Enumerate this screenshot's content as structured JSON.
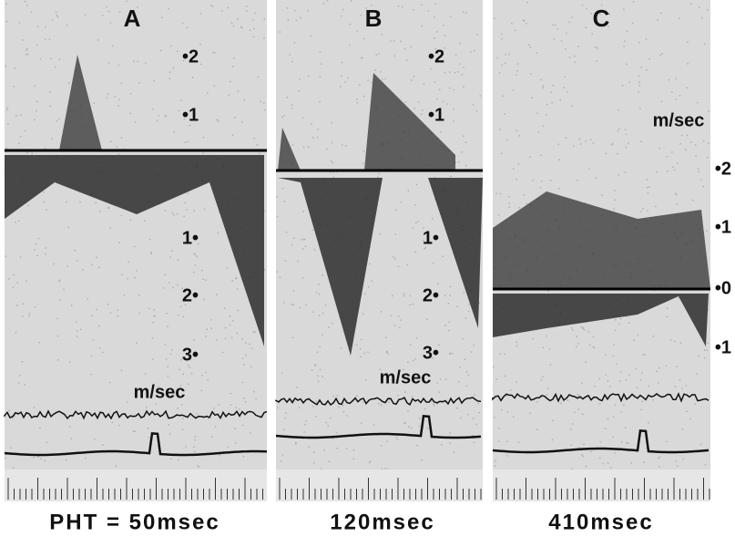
{
  "panels": [
    {
      "label": "A",
      "scale": [
        "•2",
        "•1",
        "1•",
        "2•",
        "3•"
      ],
      "unit": "m/sec",
      "caption": "PHT = 50msec"
    },
    {
      "label": "B",
      "scale": [
        "•2",
        "•1",
        "1•",
        "2•",
        "3•"
      ],
      "unit": "m/sec",
      "caption": "120msec"
    },
    {
      "label": "C",
      "scale": [
        "•2",
        "•1",
        "•0",
        "•1"
      ],
      "unit": "m/sec",
      "caption": "410msec"
    }
  ]
}
